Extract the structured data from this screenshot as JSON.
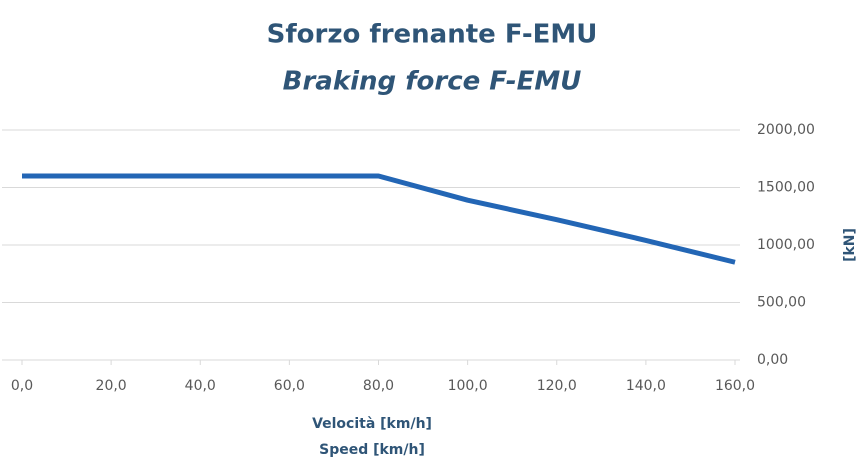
{
  "chart_data": {
    "type": "line",
    "title": "Sforzo frenante F-EMU",
    "subtitle": "Braking force F-EMU",
    "x_label": "Velocità [km/h]",
    "x_label_2": "Speed [km/h]",
    "y_label": "[kN]",
    "x": [
      0,
      80,
      100,
      120,
      140,
      160
    ],
    "series": [
      {
        "name": "Braking force",
        "color": "#2366b5",
        "values": [
          1600,
          1600,
          1390,
          1220,
          1040,
          850
        ]
      }
    ],
    "xlim": [
      0,
      160
    ],
    "xticks": [
      {
        "value": 0,
        "label": "0,0"
      },
      {
        "value": 20,
        "label": "20,0"
      },
      {
        "value": 40,
        "label": "40,0"
      },
      {
        "value": 60,
        "label": "60,0"
      },
      {
        "value": 80,
        "label": "80,0"
      },
      {
        "value": 100,
        "label": "100,0"
      },
      {
        "value": 120,
        "label": "120,0"
      },
      {
        "value": 140,
        "label": "140,0"
      },
      {
        "value": 160,
        "label": "160,0"
      }
    ],
    "ylim": [
      0,
      2000
    ],
    "yticks": [
      {
        "value": 0,
        "label": "0,00"
      },
      {
        "value": 500,
        "label": "500,00"
      },
      {
        "value": 1000,
        "label": "1000,00"
      },
      {
        "value": 1500,
        "label": "1500,00"
      },
      {
        "value": 2000,
        "label": "2000,00"
      }
    ],
    "grid": true,
    "y_axis_side": "right"
  }
}
